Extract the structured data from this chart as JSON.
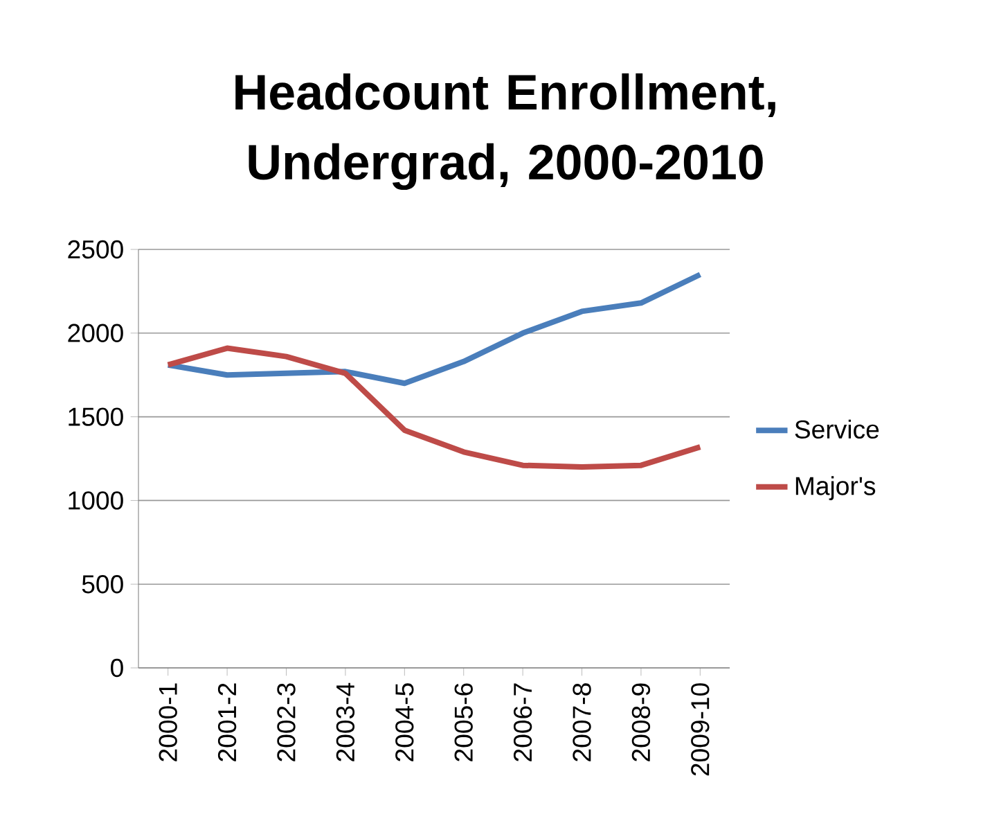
{
  "chart_data": {
    "type": "line",
    "title": "Headcount Enrollment, Undergrad, 2000-2010",
    "categories": [
      "2000-1",
      "2001-2",
      "2002-3",
      "2003-4",
      "2004-5",
      "2005-6",
      "2006-7",
      "2007-8",
      "2008-9",
      "2009-10"
    ],
    "series": [
      {
        "name": "Service",
        "color": "#4a7ebb",
        "values": [
          1810,
          1750,
          1760,
          1770,
          1700,
          1830,
          2000,
          2130,
          2180,
          2350
        ]
      },
      {
        "name": "Major's",
        "color": "#be4b48",
        "values": [
          1810,
          1910,
          1860,
          1760,
          1420,
          1290,
          1210,
          1200,
          1210,
          1320
        ]
      }
    ],
    "ylim": [
      0,
      2500
    ],
    "yticks": [
      0,
      500,
      1000,
      1500,
      2000,
      2500
    ],
    "grid": "y",
    "legend": "right",
    "marker": "none",
    "line_style": "solid"
  }
}
